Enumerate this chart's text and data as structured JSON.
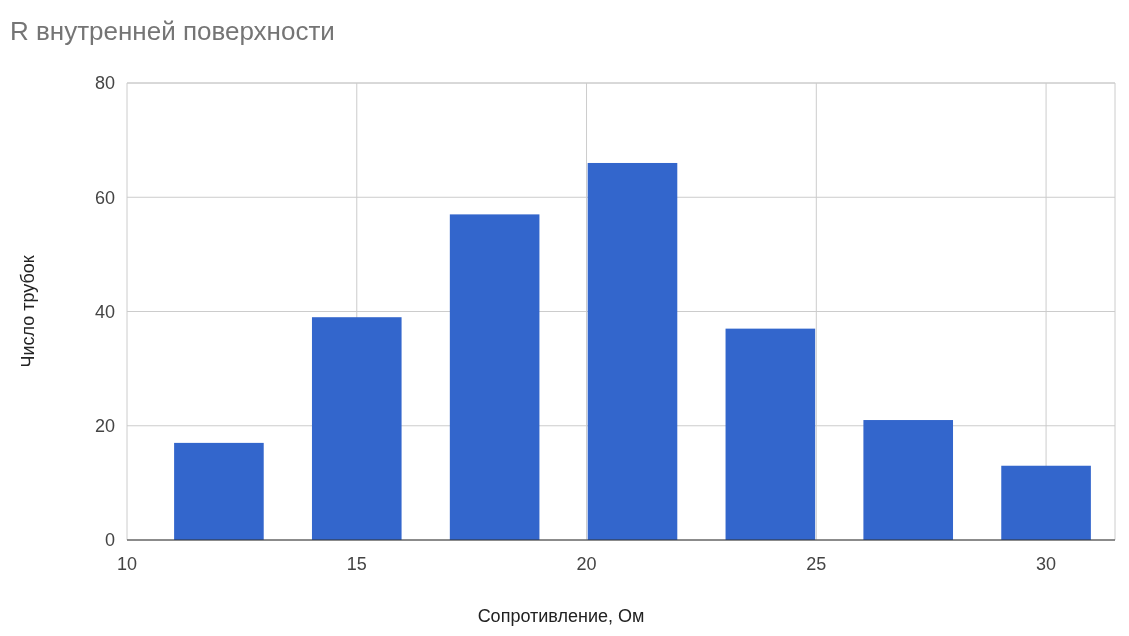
{
  "chart_data": {
    "type": "bar",
    "title": "R внутренней поверхности",
    "xlabel": "Сопротивление, Ом",
    "ylabel": "Число трубок",
    "x": [
      12,
      15,
      18,
      21,
      24,
      27,
      30
    ],
    "values": [
      17,
      39,
      57,
      66,
      37,
      21,
      13
    ],
    "color": "#3366cc",
    "xlim": [
      10,
      31.5
    ],
    "xticks": [
      10,
      15,
      20,
      25,
      30
    ],
    "ylim": [
      0,
      80
    ],
    "yticks": [
      0,
      20,
      40,
      60,
      80
    ],
    "grid": true
  }
}
